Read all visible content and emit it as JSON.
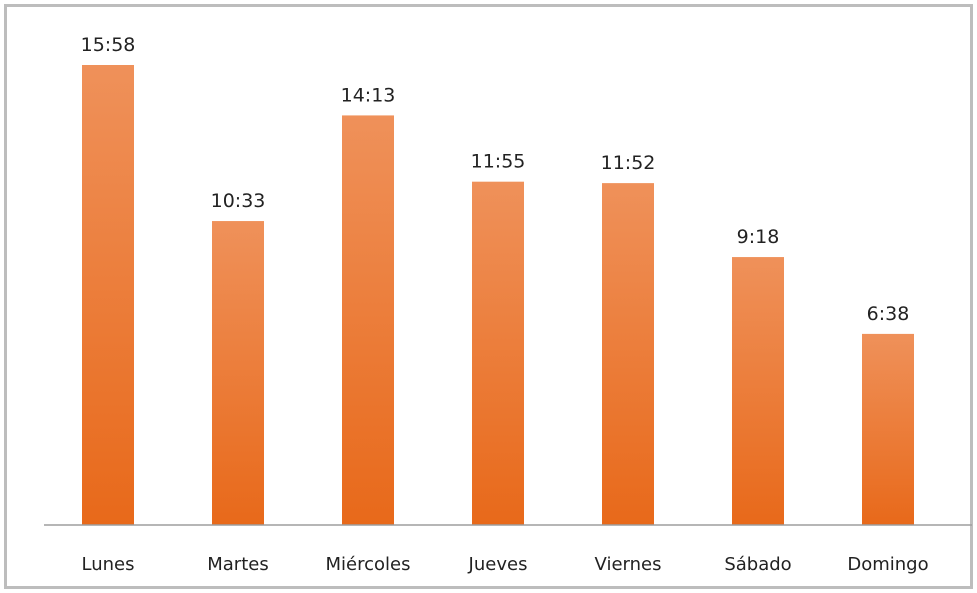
{
  "chart_data": {
    "type": "bar",
    "categories": [
      "Lunes",
      "Martes",
      "Miércoles",
      "Jueves",
      "Viernes",
      "Sábado",
      "Domingo"
    ],
    "values": [
      958,
      633,
      853,
      715,
      712,
      558,
      398
    ],
    "value_labels": [
      "15:58",
      "10:33",
      "14:13",
      "11:55",
      "11:52",
      "9:18",
      "6:38"
    ],
    "value_unit": "minutes (labels shown as h:mm)",
    "title": "",
    "xlabel": "",
    "ylabel": "",
    "ylim": [
      0,
      958
    ],
    "grid": false,
    "legend": "none",
    "colors": {
      "bar_top": "#ef915a",
      "bar_bottom": "#e8691a",
      "axis": "#9e9e9e",
      "frame": "#bdbdbd"
    }
  }
}
